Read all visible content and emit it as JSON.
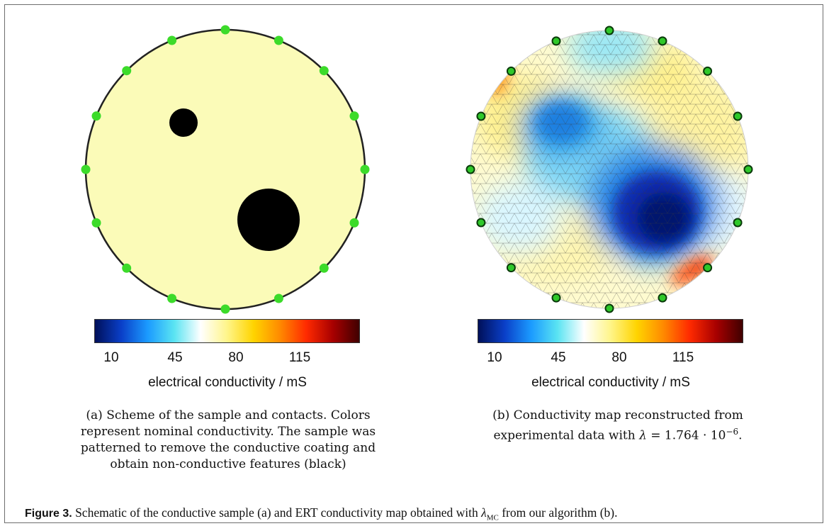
{
  "panel_a": {
    "colorbar_ticks": [
      "10",
      "45",
      "80",
      "115"
    ],
    "colorbar_label": "electrical conductivity / mS",
    "caption_lines": [
      "(a) Scheme of the sample and contacts. Colors",
      "represent nominal conductivity. The sample was",
      "patterned to remove the conductive coating and",
      "obtain non-conductive features (black)"
    ],
    "colors": {
      "sample_fill": "#fbfbb8",
      "feature": "#000000",
      "contact": "#3cdb2a"
    },
    "contact_count": 16
  },
  "panel_b": {
    "colorbar_ticks": [
      "10",
      "45",
      "80",
      "115"
    ],
    "colorbar_label": "electrical conductivity / mS",
    "caption_line1": "(b) Conductivity map reconstructed from",
    "caption_line2_prefix": "experimental data with ",
    "caption_lambda": "λ",
    "caption_equals": " = 1.764 · 10",
    "caption_exp": "−6",
    "caption_end": ".",
    "colors": {
      "contact": "#2fc82a",
      "contact_stroke": "#0a3a0a"
    },
    "contact_count": 16
  },
  "figure_caption": {
    "label": "Figure 3.",
    "text_before": " Schematic of the conductive sample (a) and ERT conductivity map obtained with ",
    "lambda": "λ",
    "subscript": "MC",
    "text_after": " from our algorithm (b)."
  },
  "colormap": [
    "#00105a",
    "#0a3fc8",
    "#1b9bff",
    "#5ae4f2",
    "#ffffff",
    "#fff58a",
    "#ffd400",
    "#ff8a00",
    "#ff2a00",
    "#a80000",
    "#400000"
  ]
}
